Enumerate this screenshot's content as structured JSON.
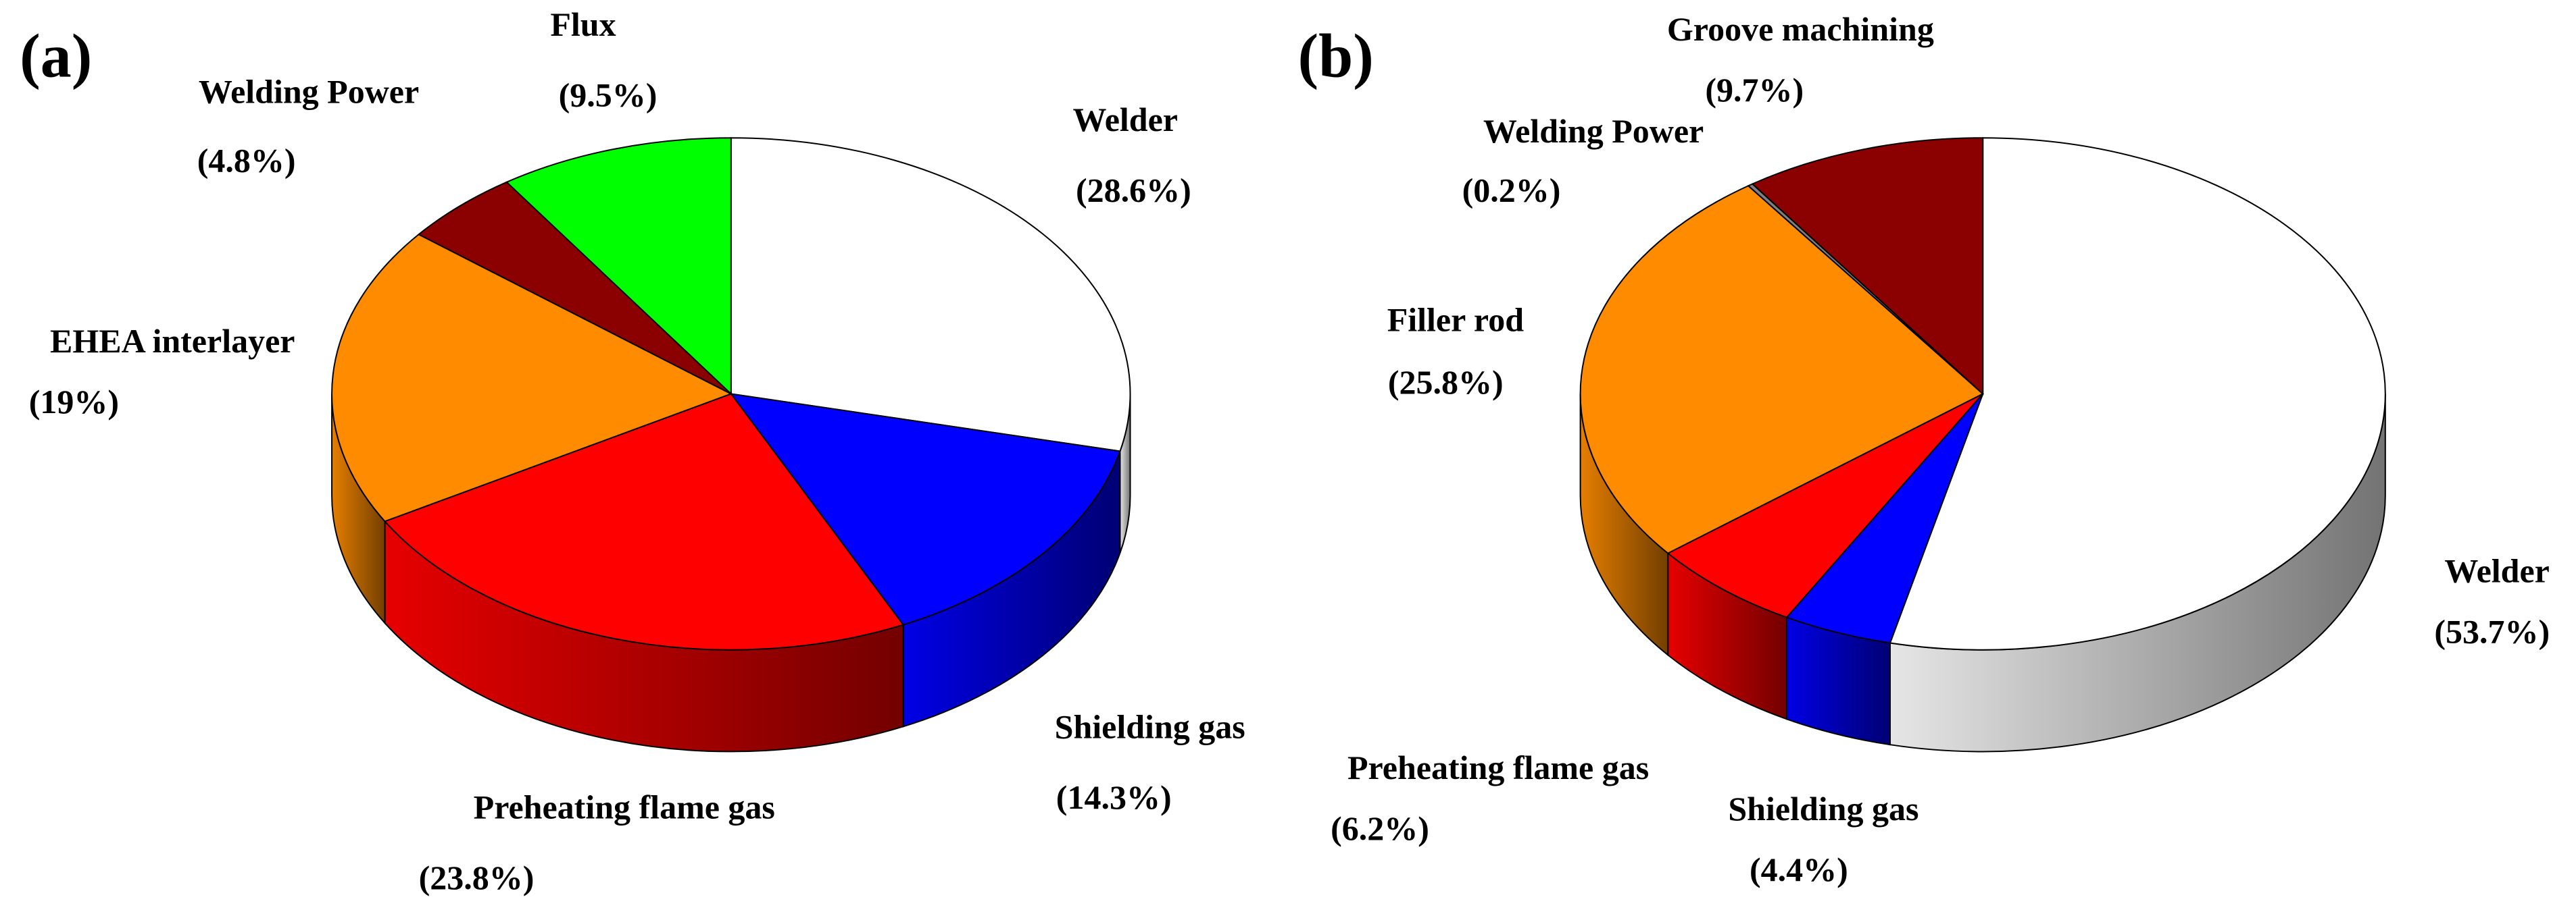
{
  "chart_data": [
    {
      "type": "pie",
      "panel_label": "(a)",
      "categories": [
        "Welder",
        "Shielding gas",
        "Preheating flame gas",
        "EHEA interlayer",
        "Welding Power",
        "Flux"
      ],
      "values": [
        28.6,
        14.3,
        23.8,
        19,
        4.8,
        9.5
      ],
      "value_labels": [
        "(28.6%)",
        "(14.3%)",
        "(23.8%)",
        "(19%)",
        "(4.8%)",
        "(9.5%)"
      ],
      "colors": [
        "#ffffff",
        "#0000ff",
        "#ff0000",
        "#ff8c00",
        "#8b0000",
        "#00ff00"
      ]
    },
    {
      "type": "pie",
      "panel_label": "(b)",
      "categories": [
        "Welder",
        "Shielding gas",
        "Preheating flame gas",
        "Filler rod",
        "Welding Power",
        "Groove machining"
      ],
      "values": [
        53.7,
        4.4,
        6.2,
        25.8,
        0.2,
        9.7
      ],
      "value_labels": [
        "(53.7%)",
        "(4.4%)",
        "(6.2%)",
        "(25.8%)",
        "(0.2%)",
        "(9.7%)"
      ],
      "colors": [
        "#ffffff",
        "#0000ff",
        "#ff0000",
        "#ff8c00",
        "#808080",
        "#8b0000"
      ]
    }
  ]
}
